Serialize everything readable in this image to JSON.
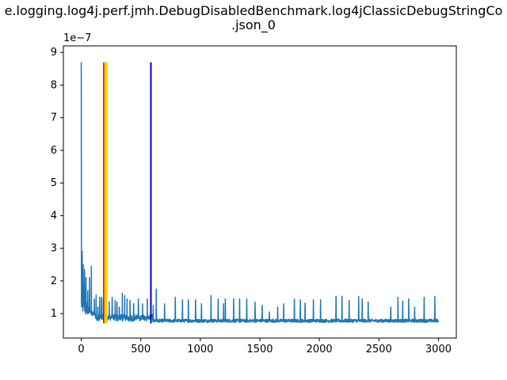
{
  "chart_data": {
    "type": "line",
    "title_line1": "e.logging.log4j.perf.jmh.DebugDisabledBenchmark.log4jClassicDebugStringCo",
    "title_line2": ".json_0",
    "xlabel": "",
    "ylabel": "",
    "xlim": [
      -150,
      3150
    ],
    "ylim": [
      2.5e-08,
      9.2e-07
    ],
    "x_ticks": [
      0,
      500,
      1000,
      1500,
      2000,
      2500,
      3000
    ],
    "y_ticks": [
      1,
      2,
      3,
      4,
      5,
      6,
      7,
      8,
      9
    ],
    "y_scale_label": "1e−7",
    "grid": false,
    "series_color": "#1f77b4",
    "series": [
      {
        "name": "",
        "spike_points": [
          [
            0,
            8.7e-07
          ],
          [
            4,
            1.2e-07
          ],
          [
            8,
            2.9e-07
          ],
          [
            12,
            1.5e-07
          ],
          [
            16,
            2.5e-07
          ],
          [
            22,
            1.6e-07
          ],
          [
            28,
            2.35e-07
          ],
          [
            34,
            1.3e-07
          ],
          [
            40,
            2.1e-07
          ],
          [
            48,
            1.05e-07
          ],
          [
            55,
            1.7e-07
          ],
          [
            62,
            1e-07
          ],
          [
            70,
            2.1e-07
          ],
          [
            78,
            1.1e-07
          ],
          [
            85,
            2.45e-07
          ],
          [
            95,
            9.5e-08
          ],
          [
            110,
            1.45e-07
          ],
          [
            125,
            1.57e-07
          ],
          [
            140,
            1.2e-07
          ],
          [
            155,
            1.5e-07
          ],
          [
            170,
            1.5e-07
          ],
          [
            185,
            1.45e-07
          ],
          [
            215,
            1.2e-07
          ],
          [
            235,
            1.35e-07
          ],
          [
            260,
            1.5e-07
          ],
          [
            285,
            1.4e-07
          ],
          [
            300,
            1.35e-07
          ],
          [
            320,
            1.2e-07
          ],
          [
            345,
            1.62e-07
          ],
          [
            365,
            1.55e-07
          ],
          [
            385,
            1.45e-07
          ],
          [
            410,
            1.4e-07
          ],
          [
            440,
            1.3e-07
          ],
          [
            480,
            1.45e-07
          ],
          [
            515,
            1.3e-07
          ],
          [
            555,
            1.45e-07
          ],
          [
            605,
            1.25e-07
          ],
          [
            630,
            1.75e-07
          ],
          [
            700,
            1.3e-07
          ],
          [
            790,
            1.5e-07
          ],
          [
            850,
            1.42e-07
          ],
          [
            900,
            1.42e-07
          ],
          [
            960,
            1.42e-07
          ],
          [
            1010,
            1.3e-07
          ],
          [
            1090,
            1.55e-07
          ],
          [
            1150,
            1.45e-07
          ],
          [
            1195,
            1.3e-07
          ],
          [
            1210,
            1.45e-07
          ],
          [
            1280,
            1.45e-07
          ],
          [
            1330,
            1.45e-07
          ],
          [
            1390,
            1.45e-07
          ],
          [
            1460,
            1.35e-07
          ],
          [
            1520,
            1.25e-07
          ],
          [
            1580,
            1.05e-07
          ],
          [
            1650,
            1.2e-07
          ],
          [
            1700,
            1.3e-07
          ],
          [
            1790,
            1.45e-07
          ],
          [
            1840,
            1.42e-07
          ],
          [
            1880,
            1.32e-07
          ],
          [
            1950,
            1.42e-07
          ],
          [
            2010,
            1.42e-07
          ],
          [
            2140,
            1.53e-07
          ],
          [
            2190,
            1.53e-07
          ],
          [
            2250,
            1.4e-07
          ],
          [
            2330,
            1.52e-07
          ],
          [
            2360,
            1.45e-07
          ],
          [
            2410,
            1.35e-07
          ],
          [
            2600,
            1.2e-07
          ],
          [
            2660,
            1.5e-07
          ],
          [
            2700,
            1.38e-07
          ],
          [
            2750,
            1.45e-07
          ],
          [
            2800,
            1.2e-07
          ],
          [
            2880,
            1.5e-07
          ],
          [
            2970,
            1.53e-07
          ]
        ]
      }
    ],
    "vertical_lines": [
      {
        "x": 190,
        "y_range": [
          7e-08,
          8.7e-07
        ],
        "color": "#ff0000"
      },
      {
        "x": 207,
        "y_range": [
          7e-08,
          8.7e-07
        ],
        "color": "#ffd700"
      },
      {
        "x": 585,
        "y_range": [
          7e-08,
          8.7e-07
        ],
        "color": "#0000cd"
      }
    ]
  }
}
